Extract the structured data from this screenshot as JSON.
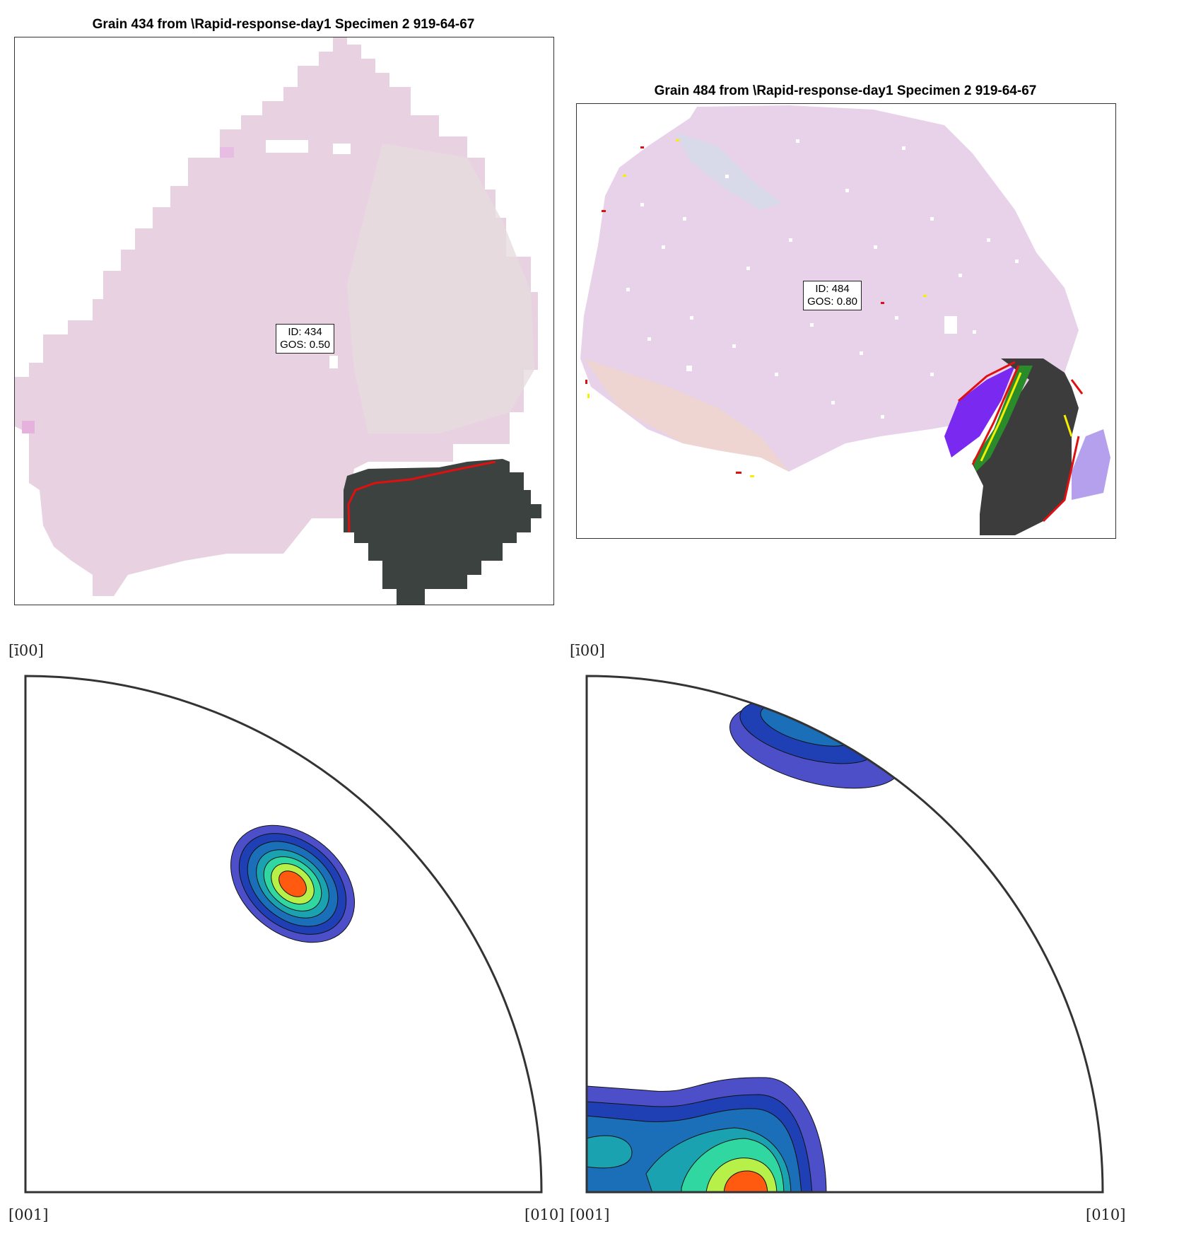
{
  "panels": [
    {
      "title": "Grain 434 from \\Rapid-response-day1 Specimen 2 919-64-67",
      "id_label": "ID: 434",
      "gos_label": "GOS: 0.50"
    },
    {
      "title": "Grain 484 from \\Rapid-response-day1 Specimen 2 919-64-67",
      "id_label": "ID: 484",
      "gos_label": "GOS: 0.80"
    }
  ],
  "pole_figures": [
    {
      "top_label": "[ī00]",
      "origin_label": "[001]",
      "right_label": "[010]"
    },
    {
      "top_label": "[ī00]",
      "origin_label": "[001]",
      "right_label": "[010]"
    }
  ],
  "colors": {
    "grain_fill": "#e8cfe2",
    "neighbor_fill": "#3c4240",
    "boundary_red": "#e01010",
    "boundary_yellow": "#f5f000",
    "contour_levels": [
      "#4d4fc8",
      "#1f3fb5",
      "#1a6fb8",
      "#1ba2b0",
      "#30d7a0",
      "#b8f04a",
      "#ff5a10"
    ]
  }
}
